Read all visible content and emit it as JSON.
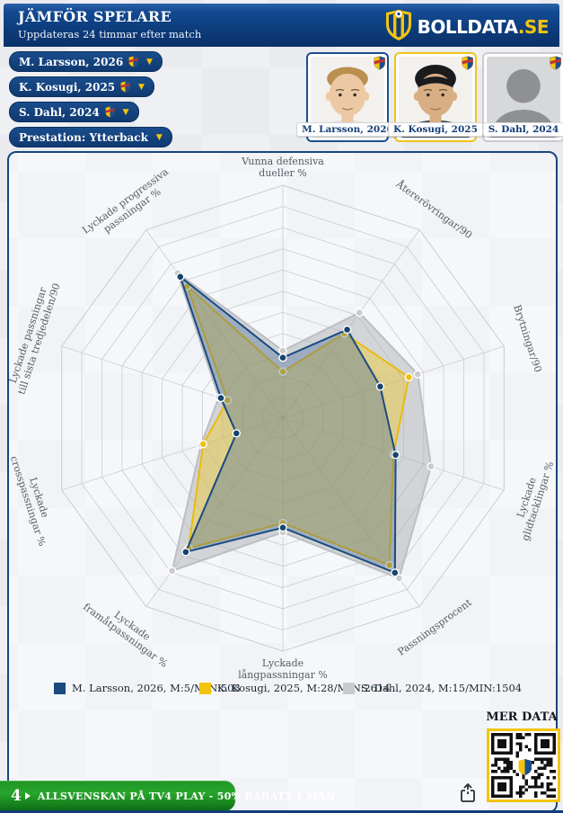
{
  "header": {
    "title": "JÄMFÖR SPELARE",
    "subtitle": "Uppdateras 24 timmar efter match",
    "brand": "BOLLDATA",
    "brand_tld": ".SE"
  },
  "filters": [
    {
      "label": "M. Larsson, 2026",
      "crest": true
    },
    {
      "label": "K. Kosugi, 2025",
      "crest": true
    },
    {
      "label": "S. Dahl, 2024",
      "crest": true
    },
    {
      "label": "Prestation: Ytterback",
      "crest": false
    }
  ],
  "players": [
    {
      "name": "M. Larsson, 2026",
      "accent": "#1d4f8f",
      "variant": "photo-blond"
    },
    {
      "name": "K. Kosugi, 2025",
      "accent": "#f0c419",
      "variant": "photo-dark"
    },
    {
      "name": "S. Dahl, 2024",
      "accent": "#c9cbce",
      "variant": "silhouette"
    }
  ],
  "chart_data": {
    "type": "radar",
    "max": 100,
    "rings": 11,
    "grid_color": "#caccd1",
    "axes": [
      "Vunna defensiva\ndueller %",
      "Återerövringar/90",
      "Brytningar/90",
      "Lyckade\nglidtacklingar %",
      "Passningsprocent",
      "Lyckade\nlångpassningar %",
      "Lyckade\nframåtpassningar %",
      "Lyckade\ncrosspassningar %",
      "Lyckade passningar\ntill sista tredjedelen/90",
      "Lyckade progressiva\npassningar %"
    ],
    "series": [
      {
        "name": "M. Larsson, 2026",
        "legend": "M. Larsson, 2026, M:5/MIN:503",
        "color": "#1b4b7f",
        "fill": "rgba(62,102,150,0.35)",
        "marker": "#16436f",
        "values": [
          26,
          47,
          44,
          51,
          82,
          47,
          71,
          21,
          28,
          75
        ]
      },
      {
        "name": "K. Kosugi, 2025",
        "legend": "K. Kosugi, 2025, M:28/MIN:2614",
        "color": "#e9bb0e",
        "fill": "rgba(242,201,28,0.40)",
        "marker": "#edc013",
        "values": [
          20,
          45,
          57,
          50,
          78,
          45,
          69,
          36,
          25,
          70
        ]
      },
      {
        "name": "S. Dahl, 2024",
        "legend": "S. Dahl, 2024, M:15/MIN:1504",
        "color": "#bcbec2",
        "fill": "rgba(168,170,175,0.45)",
        "marker": "#c9cbce",
        "values": [
          29,
          56,
          61,
          67,
          85,
          49,
          81,
          37,
          29,
          77
        ]
      }
    ]
  },
  "footer": {
    "mer_data": "MER DATA",
    "promo_channel": "4",
    "promo": "ALLSVENSKAN PÅ TV4 PLAY - 50% RABATT 1 MÅN"
  }
}
